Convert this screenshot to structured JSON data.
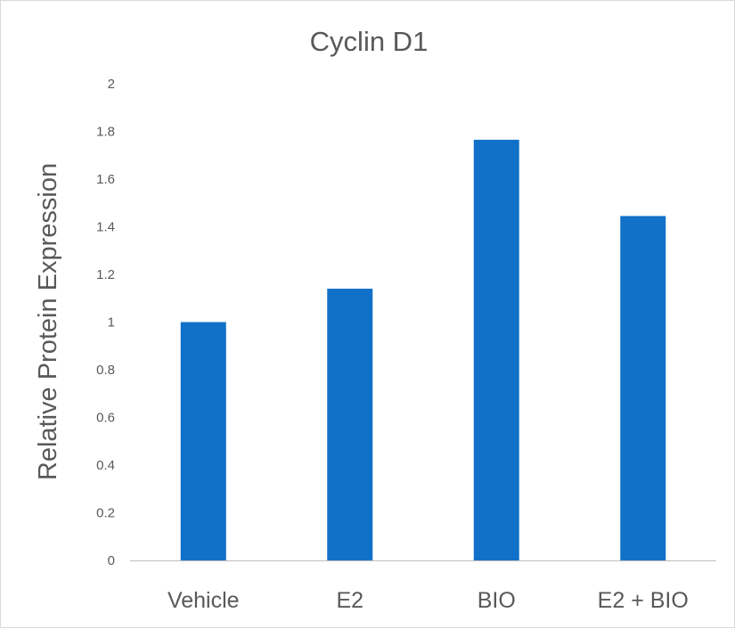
{
  "chart_data": {
    "type": "bar",
    "title": "Cyclin D1",
    "xlabel": "",
    "ylabel": "Relative Protein Expression",
    "categories": [
      "Vehicle",
      "E2",
      "BIO",
      "E2 + BIO"
    ],
    "values": [
      1.0,
      1.14,
      1.765,
      1.445
    ],
    "ylim": [
      0,
      2
    ],
    "yticks": [
      "0",
      "0.2",
      "0.4",
      "0.6",
      "0.8",
      "1",
      "1.2",
      "1.4",
      "1.6",
      "1.8",
      "2"
    ],
    "grid": false,
    "legend": "none",
    "bar_color": "#1170C8",
    "axis_color": "#BFBFBF",
    "text_color": "#595959"
  }
}
